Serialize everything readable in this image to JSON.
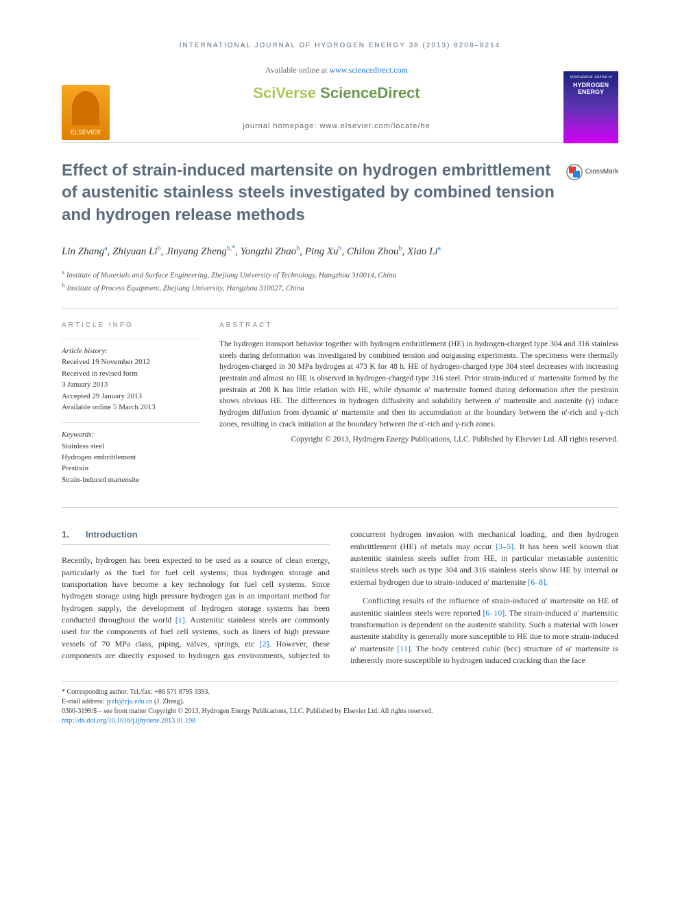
{
  "running_header": "INTERNATIONAL JOURNAL OF HYDROGEN ENERGY 38 (2013) 8208–8214",
  "header": {
    "available_text": "Available online at ",
    "available_link": "www.sciencedirect.com",
    "sciverse_prefix": "SciVerse ",
    "sciverse_suffix": "ScienceDirect",
    "homepage_text": "journal homepage: www.elsevier.com/locate/he",
    "elsevier_label": "ELSEVIER",
    "crossmark_label": "CrossMark",
    "cover_top": "International Journal of",
    "cover_title": "HYDROGEN ENERGY"
  },
  "title": "Effect of strain-induced martensite on hydrogen embrittlement of austenitic stainless steels investigated by combined tension and hydrogen release methods",
  "authors_html": "Lin Zhang<sup>a</sup>, Zhiyuan Li<sup>b</sup>, Jinyang Zheng<sup>b,*</sup>, Yongzhi Zhao<sup>b</sup>, Ping Xu<sup>b</sup>, Chilou Zhou<sup>b</sup>, Xiao Li<sup>a</sup>",
  "affiliations": {
    "a": "Institute of Materials and Surface Engineering, Zhejiang University of Technology, Hangzhou 310014, China",
    "b": "Institute of Process Equipment, Zhejiang University, Hangzhou 310027, China"
  },
  "article_info": {
    "heading": "ARTICLE INFO",
    "history_label": "Article history:",
    "received": "Received 19 November 2012",
    "revised_label": "Received in revised form",
    "revised_date": "3 January 2013",
    "accepted": "Accepted 29 January 2013",
    "online": "Available online 5 March 2013",
    "keywords_label": "Keywords:",
    "keywords": [
      "Stainless steel",
      "Hydrogen embrittlement",
      "Prestrain",
      "Strain-induced martensite"
    ]
  },
  "abstract": {
    "heading": "ABSTRACT",
    "text": "The hydrogen transport behavior together with hydrogen embrittlement (HE) in hydrogen-charged type 304 and 316 stainless steels during deformation was investigated by combined tension and outgassing experiments. The specimens were thermally hydrogen-charged in 30 MPa hydrogen at 473 K for 48 h. HE of hydrogen-charged type 304 steel decreases with increasing prestrain and almost no HE is observed in hydrogen-charged type 316 steel. Prior strain-induced α′ martensite formed by the prestrain at 208 K has little relation with HE, while dynamic α′ martensite formed during deformation after the prestrain shows obvious HE. The differences in hydrogen diffusivity and solubility between α′ martensite and austenite (γ) induce hydrogen diffusion from dynamic α′ martensite and then its accumulation at the boundary between the α′-rich and γ-rich zones, resulting in crack initiation at the boundary between the α′-rich and γ-rich zones.",
    "copyright": "Copyright © 2013, Hydrogen Energy Publications, LLC. Published by Elsevier Ltd. All rights reserved."
  },
  "body": {
    "section_number": "1.",
    "section_title": "Introduction",
    "para1": "Recently, hydrogen has been expected to be used as a source of clean energy, particularly as the fuel for fuel cell systems; thus hydrogen storage and transportation have become a key technology for fuel cell systems. Since hydrogen storage using high pressure hydrogen gas is an important method for hydrogen supply, the development of hydrogen storage systems has been conducted throughout the world [1]. Austenitic stainless steels are commonly used for the components of fuel cell systems, such as liners of high pressure vessels of 70 MPa class, piping, valves, springs, etc [2]. However, these components are directly exposed to hydrogen gas environments, subjected to concurrent hydrogen invasion with mechanical loading, and then hydrogen embrittlement (HE) of metals may occur [3–5]. It has been well known that austenitic stainless steels suffer from HE, in particular metastable austenitic stainless steels such as type 304 and 316 stainless steels show HE by internal or external hydrogen due to strain-induced α′ martensite [6–8].",
    "para2": "Conflicting results of the influence of strain-induced α′ martensite on HE of austenitic stainless steels were reported [6–10]. The strain-induced α′ martensitic transformation is dependent on the austenite stability. Such a material with lower austenite stability is generally more susceptible to HE due to more strain-induced α′ martensite [11]. The body centered cubic (bcc) structure of α′ martensite is inherently more susceptible to hydrogen induced cracking than the face"
  },
  "footnote": {
    "corr": "* Corresponding author. Tel./fax: +86 571 8795 3393.",
    "email_label": "E-mail address: ",
    "email": "jyzh@zju.edu.cn",
    "email_author": " (J. Zheng).",
    "issn_line": "0360-3199/$ – see front matter Copyright © 2013, Hydrogen Energy Publications, LLC. Published by Elsevier Ltd. All rights reserved.",
    "doi_label": "http://dx.doi.org/",
    "doi": "10.1016/j.ijhydene.2013.01.198"
  },
  "colors": {
    "heading_color": "#5a6b7d",
    "link_color": "#1976d2",
    "elsevier_orange": "#e08000",
    "sciverse_green": "#6a994e",
    "sciverse_light": "#a7c957"
  }
}
